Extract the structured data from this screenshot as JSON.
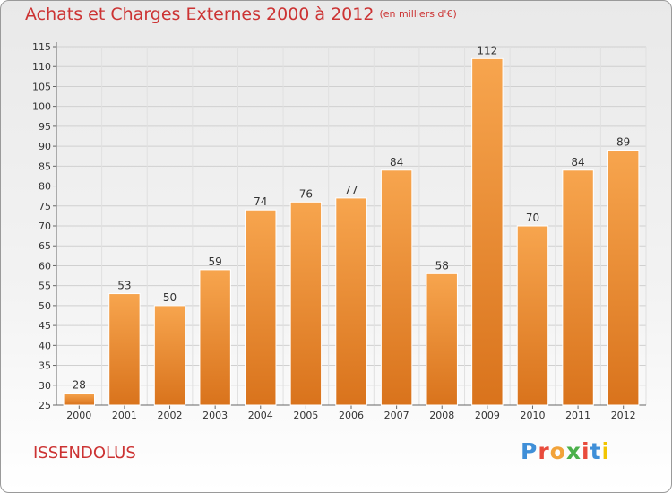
{
  "title": "Achats et Charges Externes 2000 à 2012",
  "subtitle": "(en milliers d'€)",
  "place": "ISSENDOLUS",
  "logo": {
    "p": "P",
    "r": "r",
    "o": "o",
    "x": "x",
    "i1": "i",
    "t": "t",
    "i2": "i"
  },
  "colors": {
    "bar_light": "#f7a54e",
    "bar_dark": "#d9731c",
    "title": "#cc3333"
  },
  "chart_data": {
    "type": "bar",
    "title": "Achats et Charges Externes 2000 à 2012",
    "subtitle": "(en milliers d'€)",
    "categories": [
      "2000",
      "2001",
      "2002",
      "2003",
      "2004",
      "2005",
      "2006",
      "2007",
      "2008",
      "2009",
      "2010",
      "2011",
      "2012"
    ],
    "values": [
      28,
      53,
      50,
      59,
      74,
      76,
      77,
      84,
      58,
      112,
      70,
      84,
      89
    ],
    "ylim": [
      25,
      115
    ],
    "yticks": [
      25,
      30,
      35,
      40,
      45,
      50,
      55,
      60,
      65,
      70,
      75,
      80,
      85,
      90,
      95,
      100,
      105,
      110,
      115
    ],
    "grid": true,
    "legend": "none"
  }
}
